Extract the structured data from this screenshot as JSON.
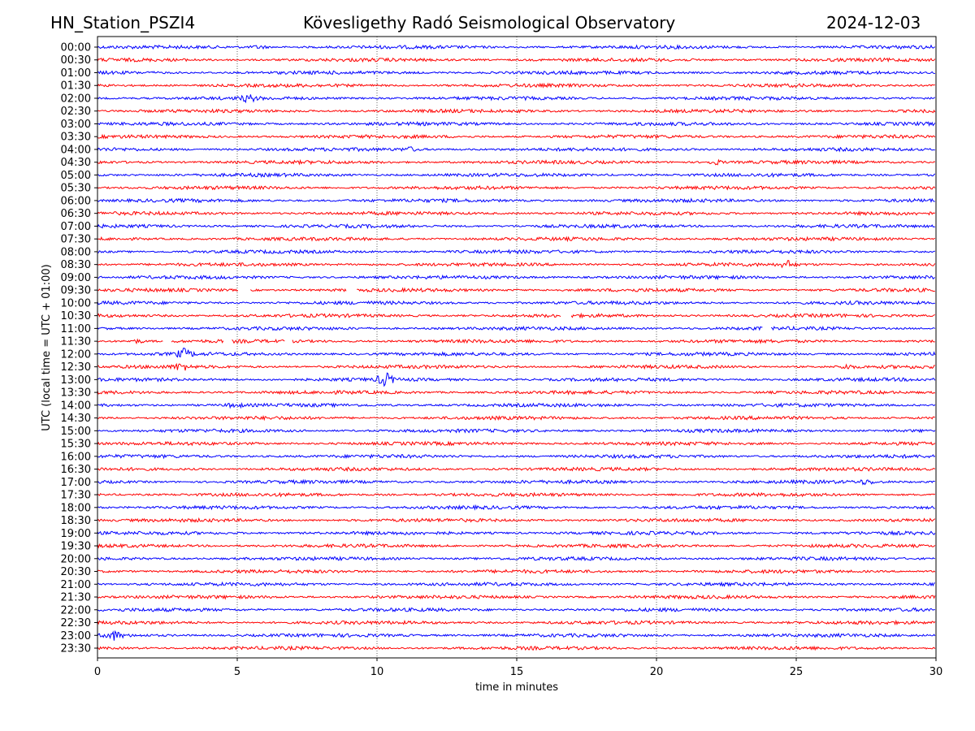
{
  "chart_data": {
    "type": "line",
    "title_left": "HN_Station_PSZI4",
    "title_center": "Kövesligethy Radó Seismological Observatory",
    "title_right": "2024-12-03",
    "xlabel": "time in minutes",
    "ylabel": "UTC (local time = UTC + 01:00)",
    "xlim": [
      0,
      30
    ],
    "xticks": [
      "0",
      "5",
      "10",
      "15",
      "20",
      "25",
      "30"
    ],
    "xtick_values": [
      0,
      5,
      10,
      15,
      20,
      25,
      30
    ],
    "grid": "vertical dotted at each x tick",
    "row_labels": [
      "00:00",
      "00:30",
      "01:00",
      "01:30",
      "02:00",
      "02:30",
      "03:00",
      "03:30",
      "04:00",
      "04:30",
      "05:00",
      "05:30",
      "06:00",
      "06:30",
      "07:00",
      "07:30",
      "08:00",
      "08:30",
      "09:00",
      "09:30",
      "10:00",
      "10:30",
      "11:00",
      "11:30",
      "12:00",
      "12:30",
      "13:00",
      "13:30",
      "14:00",
      "14:30",
      "15:00",
      "15:30",
      "16:00",
      "16:30",
      "17:00",
      "17:30",
      "18:00",
      "18:30",
      "19:00",
      "19:30",
      "20:00",
      "20:30",
      "21:00",
      "21:30",
      "22:00",
      "22:30",
      "23:00",
      "23:30"
    ],
    "series_colors": [
      "#0000ff",
      "#ff0000"
    ],
    "gaps": [
      {
        "row": "09:30",
        "from": 5.05,
        "to": 5.45
      },
      {
        "row": "09:30",
        "from": 8.9,
        "to": 9.25
      },
      {
        "row": "10:30",
        "from": 16.6,
        "to": 16.95
      },
      {
        "row": "11:00",
        "from": 23.8,
        "to": 24.1
      },
      {
        "row": "11:30",
        "from": 2.35,
        "to": 2.65
      },
      {
        "row": "11:30",
        "from": 4.5,
        "to": 4.78
      },
      {
        "row": "11:30",
        "from": 6.7,
        "to": 6.95
      }
    ],
    "events": [
      {
        "row": "00:00",
        "minute": 5.8,
        "amp": 1.6
      },
      {
        "row": "02:00",
        "minute": 5.4,
        "amp": 1.6
      },
      {
        "row": "04:00",
        "minute": 11.2,
        "amp": 1.4
      },
      {
        "row": "04:30",
        "minute": 22.1,
        "amp": 2.0
      },
      {
        "row": "08:30",
        "minute": 24.7,
        "amp": 2.2
      },
      {
        "row": "11:30",
        "minute": 1.4,
        "amp": 1.8
      },
      {
        "row": "12:00",
        "minute": 3.1,
        "amp": 2.6
      },
      {
        "row": "12:30",
        "minute": 3.0,
        "amp": 1.8
      },
      {
        "row": "12:30",
        "minute": 26.8,
        "amp": 1.6
      },
      {
        "row": "13:00",
        "minute": 10.3,
        "amp": 3.5
      },
      {
        "row": "14:00",
        "minute": 4.9,
        "amp": 1.5
      },
      {
        "row": "17:00",
        "minute": 27.5,
        "amp": 1.4
      },
      {
        "row": "23:00",
        "minute": 0.6,
        "amp": 2.4
      }
    ]
  }
}
